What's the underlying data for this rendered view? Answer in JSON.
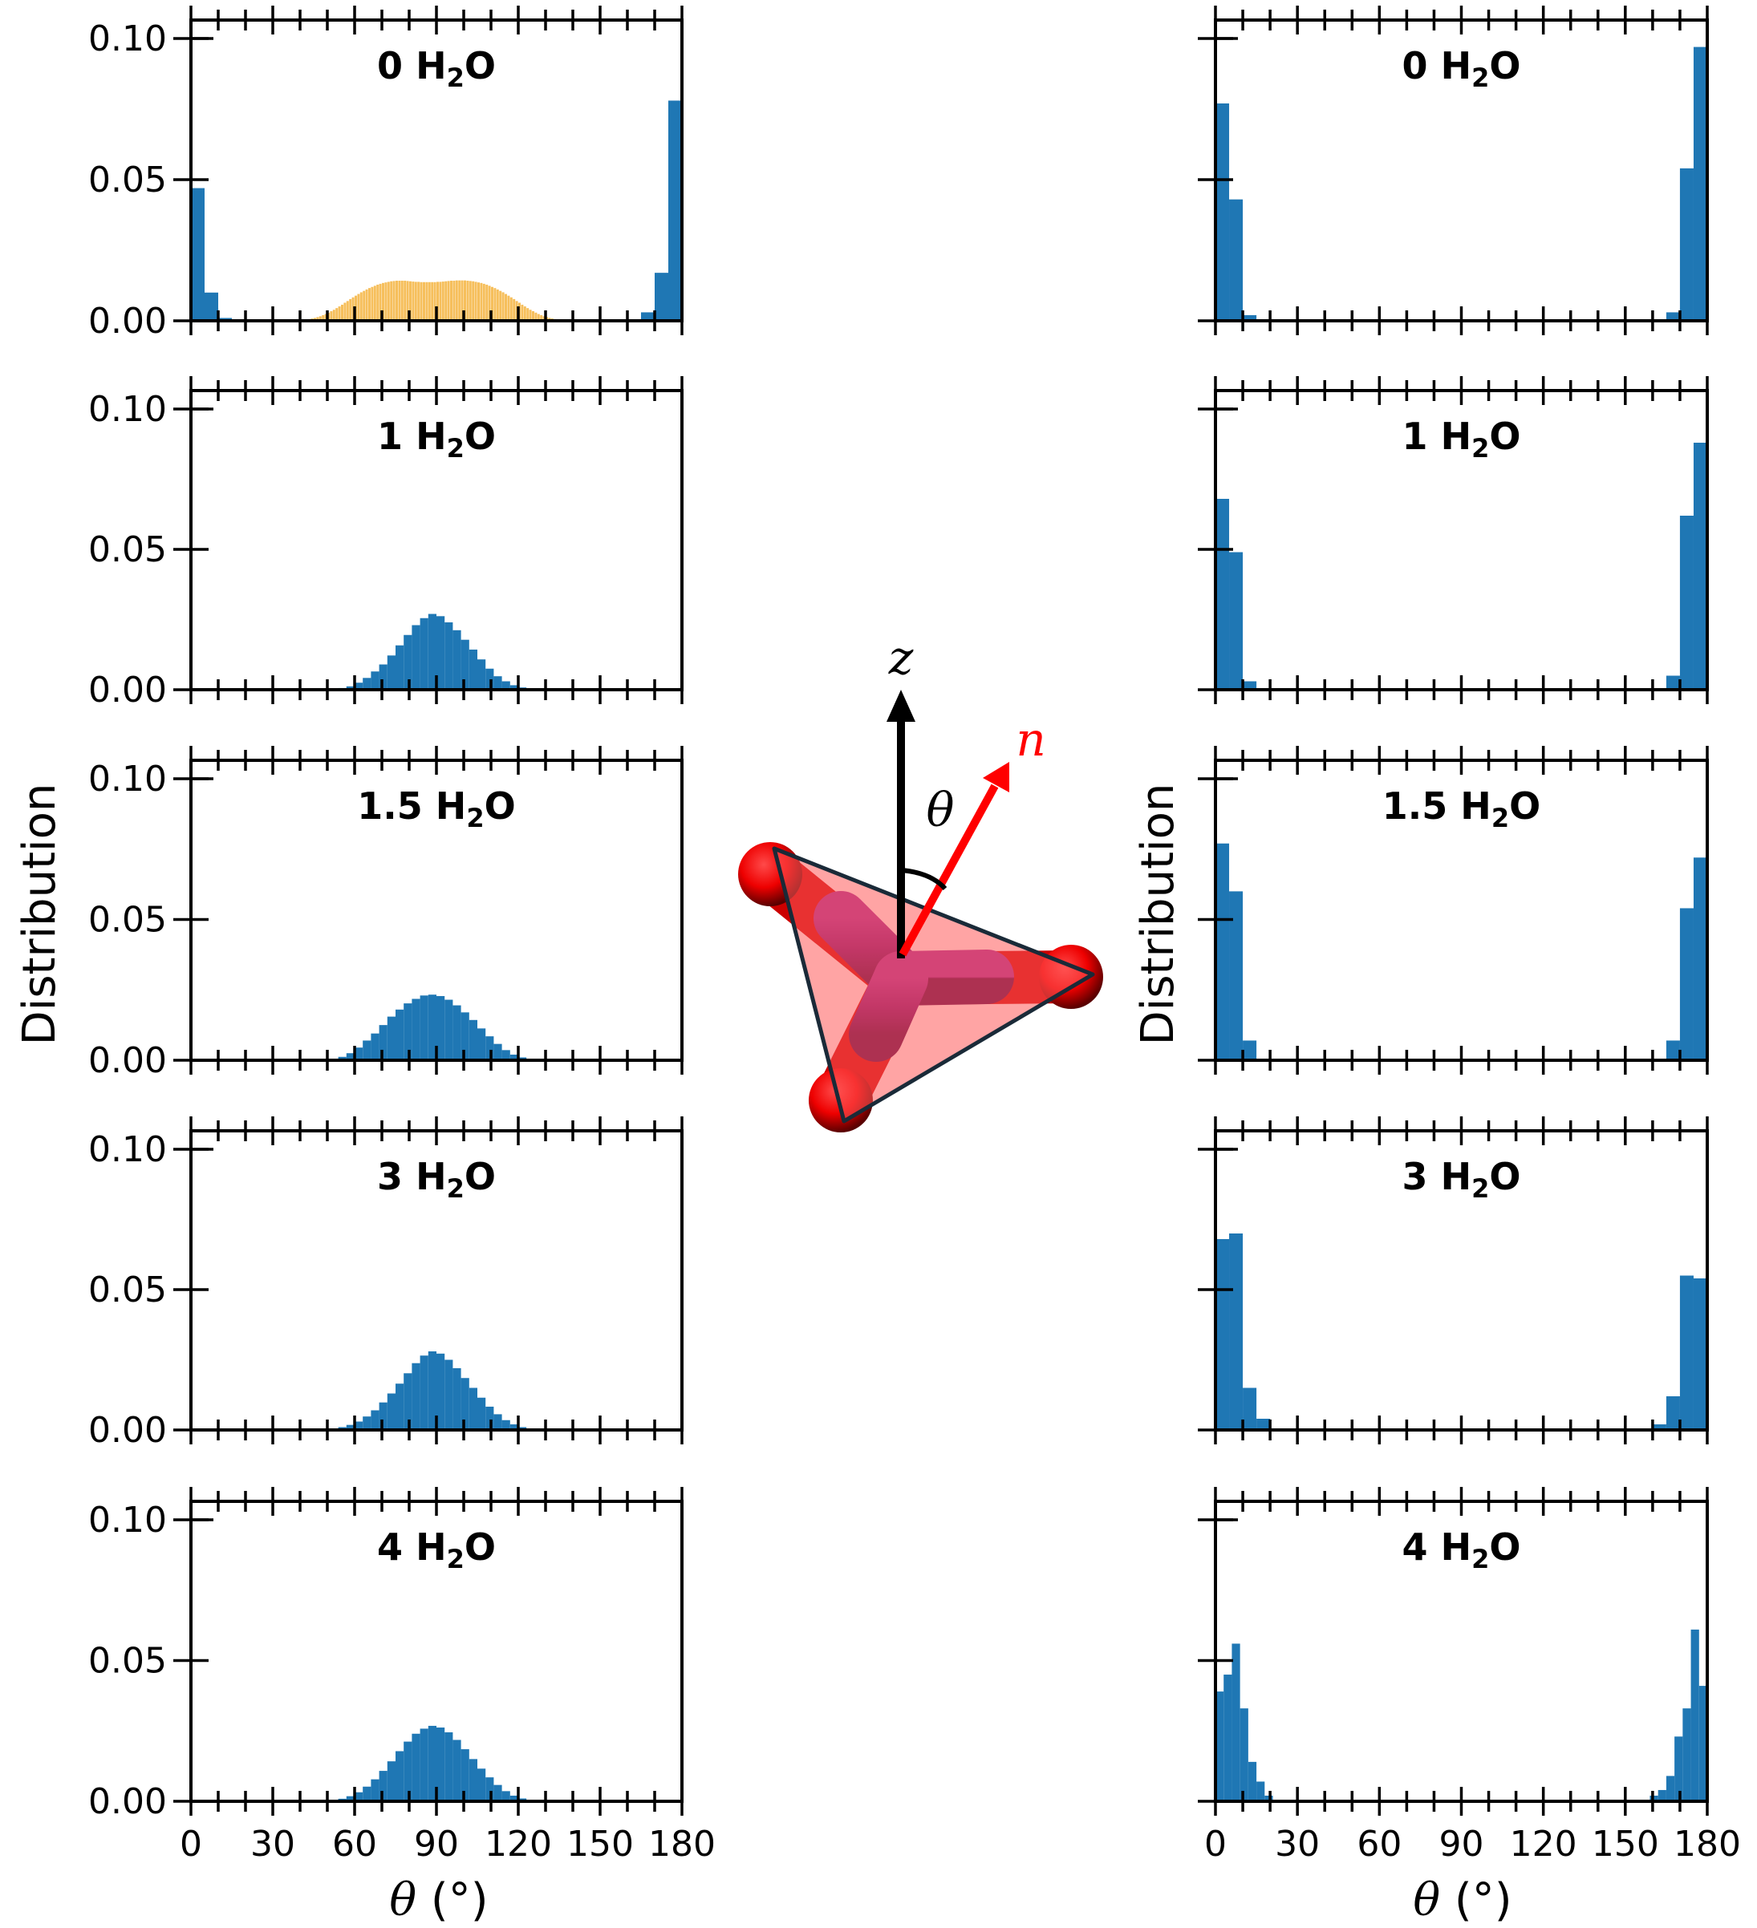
{
  "colors": {
    "bar": "#1f77b4",
    "bar_ref": "#f5b84a",
    "n_vector": "#ff0000",
    "z_vector": "#000000"
  },
  "figure": {
    "ylabel": "Distribution",
    "xlabel_symbol": "θ",
    "xlabel_unit": " (°)",
    "molecule": {
      "z_label": "z",
      "n_label": "n",
      "theta_label": "θ"
    }
  },
  "chart_data": [
    {
      "type": "bar",
      "column": "left",
      "title_pre": "0 H",
      "title_sub": "2",
      "title_post": "O",
      "xlim": [
        0,
        180
      ],
      "ylim": [
        0,
        0.1
      ],
      "xticks": [
        "0",
        "30",
        "60",
        "90",
        "120",
        "150",
        "180"
      ],
      "yticks": [
        "0.00",
        "0.05",
        "0.10"
      ],
      "bin_width": 5,
      "series": [
        {
          "values": [
            0.047,
            0.01,
            0.001,
            0,
            0,
            0,
            0,
            0,
            0,
            0,
            0,
            0,
            0,
            0,
            0,
            0,
            0,
            0,
            0,
            0,
            0,
            0,
            0,
            0,
            0,
            0,
            0,
            0,
            0,
            0,
            0,
            0,
            0,
            0.003,
            0.017,
            0.078
          ]
        },
        {
          "bin_width": 1,
          "values": [
            0,
            0,
            0,
            0,
            0,
            0,
            0,
            0,
            0,
            0,
            0,
            0,
            0,
            0,
            0,
            0,
            0,
            0,
            0,
            0,
            0,
            0,
            0,
            0,
            0,
            0,
            0,
            0,
            0,
            0,
            0,
            0,
            0,
            0,
            0,
            0,
            0,
            0,
            0,
            0,
            0,
            0,
            0.0004,
            0.0006,
            0.0008,
            0.001,
            0.0013,
            0.0016,
            0.002,
            0.0024,
            0.0029,
            0.0034,
            0.0039,
            0.0045,
            0.0051,
            0.0057,
            0.0064,
            0.007,
            0.0077,
            0.0083,
            0.0089,
            0.0095,
            0.0101,
            0.0106,
            0.0111,
            0.0116,
            0.012,
            0.0124,
            0.0128,
            0.0131,
            0.0134,
            0.0136,
            0.0138,
            0.014,
            0.0141,
            0.0142,
            0.0142,
            0.0142,
            0.0142,
            0.0141,
            0.014,
            0.0139,
            0.0138,
            0.0138,
            0.0137,
            0.0137,
            0.0137,
            0.0137,
            0.0137,
            0.0137,
            0.0138,
            0.0138,
            0.0139,
            0.014,
            0.0141,
            0.0142,
            0.0142,
            0.0143,
            0.0143,
            0.0143,
            0.0143,
            0.0142,
            0.0141,
            0.014,
            0.0138,
            0.0136,
            0.0134,
            0.0131,
            0.0128,
            0.0124,
            0.012,
            0.0116,
            0.0111,
            0.0106,
            0.0101,
            0.0095,
            0.0089,
            0.0083,
            0.0077,
            0.007,
            0.0064,
            0.0057,
            0.0051,
            0.0045,
            0.0039,
            0.0034,
            0.0029,
            0.0024,
            0.002,
            0.0016,
            0.0013,
            0.001,
            0.0008,
            0.0006,
            0.0004,
            0.0003,
            0.0002,
            0.0001,
            0,
            0,
            0,
            0,
            0,
            0,
            0,
            0,
            0,
            0,
            0,
            0,
            0,
            0,
            0,
            0,
            0,
            0,
            0,
            0,
            0,
            0,
            0,
            0,
            0,
            0,
            0,
            0,
            0,
            0,
            0,
            0,
            0,
            0,
            0,
            0,
            0,
            0,
            0,
            0,
            0,
            0,
            0,
            0,
            0,
            0,
            0,
            0,
            0,
            0,
            0,
            0
          ]
        }
      ]
    },
    {
      "type": "bar",
      "column": "left",
      "title_pre": "1 H",
      "title_sub": "2",
      "title_post": "O",
      "xlim": [
        0,
        180
      ],
      "ylim": [
        0,
        0.1
      ],
      "xticks": [
        "0",
        "30",
        "60",
        "90",
        "120",
        "150",
        "180"
      ],
      "yticks": [
        "0.00",
        "0.05",
        "0.10"
      ],
      "bin_width": 3,
      "series": [
        {
          "values": [
            0,
            0,
            0,
            0,
            0,
            0,
            0,
            0,
            0,
            0,
            0,
            0,
            0,
            0,
            0,
            0,
            0,
            0.0003,
            0.0006,
            0.0012,
            0.0025,
            0.0042,
            0.0065,
            0.009,
            0.0122,
            0.0158,
            0.0195,
            0.023,
            0.0255,
            0.027,
            0.0262,
            0.024,
            0.0212,
            0.0178,
            0.0143,
            0.0108,
            0.0075,
            0.0048,
            0.003,
            0.0016,
            0.0008,
            0.0003,
            0,
            0,
            0,
            0,
            0,
            0,
            0,
            0,
            0,
            0,
            0,
            0,
            0,
            0,
            0,
            0,
            0,
            0
          ]
        }
      ]
    },
    {
      "type": "bar",
      "column": "left",
      "title_pre": "1.5 H",
      "title_sub": "2",
      "title_post": "O",
      "xlim": [
        0,
        180
      ],
      "ylim": [
        0,
        0.1
      ],
      "xticks": [
        "0",
        "30",
        "60",
        "90",
        "120",
        "150",
        "180"
      ],
      "yticks": [
        "0.00",
        "0.05",
        "0.10"
      ],
      "bin_width": 3,
      "series": [
        {
          "values": [
            0,
            0,
            0,
            0,
            0,
            0,
            0,
            0,
            0,
            0,
            0,
            0,
            0,
            0,
            0,
            0,
            0,
            0.0005,
            0.0012,
            0.0025,
            0.0045,
            0.007,
            0.0095,
            0.0125,
            0.0155,
            0.018,
            0.0202,
            0.0218,
            0.023,
            0.0233,
            0.0228,
            0.0215,
            0.0195,
            0.017,
            0.0143,
            0.0113,
            0.0085,
            0.0058,
            0.0036,
            0.002,
            0.001,
            0.0004,
            0,
            0,
            0,
            0,
            0,
            0,
            0,
            0,
            0,
            0,
            0,
            0,
            0,
            0,
            0,
            0,
            0,
            0
          ]
        }
      ]
    },
    {
      "type": "bar",
      "column": "left",
      "title_pre": "3 H",
      "title_sub": "2",
      "title_post": "O",
      "xlim": [
        0,
        180
      ],
      "ylim": [
        0,
        0.1
      ],
      "xticks": [
        "0",
        "30",
        "60",
        "90",
        "120",
        "150",
        "180"
      ],
      "yticks": [
        "0.00",
        "0.05",
        "0.10"
      ],
      "bin_width": 3,
      "series": [
        {
          "values": [
            0,
            0,
            0,
            0,
            0,
            0,
            0,
            0,
            0,
            0,
            0,
            0,
            0,
            0,
            0,
            0,
            0.0002,
            0.0005,
            0.001,
            0.0018,
            0.003,
            0.0048,
            0.007,
            0.0098,
            0.013,
            0.0165,
            0.0202,
            0.0238,
            0.0265,
            0.028,
            0.0272,
            0.025,
            0.022,
            0.0185,
            0.015,
            0.0115,
            0.0083,
            0.0056,
            0.0035,
            0.002,
            0.001,
            0.0004,
            0,
            0,
            0,
            0,
            0,
            0,
            0,
            0,
            0,
            0,
            0,
            0,
            0,
            0,
            0,
            0,
            0,
            0
          ]
        }
      ]
    },
    {
      "type": "bar",
      "column": "left",
      "title_pre": "4 H",
      "title_sub": "2",
      "title_post": "O",
      "xlim": [
        0,
        180
      ],
      "ylim": [
        0,
        0.1
      ],
      "xticks": [
        "0",
        "30",
        "60",
        "90",
        "120",
        "150",
        "180"
      ],
      "yticks": [
        "0.00",
        "0.05",
        "0.10"
      ],
      "bin_width": 3,
      "series": [
        {
          "values": [
            0,
            0,
            0,
            0,
            0,
            0,
            0,
            0,
            0,
            0,
            0,
            0,
            0,
            0,
            0,
            0,
            0,
            0.0004,
            0.0009,
            0.0018,
            0.0032,
            0.0052,
            0.0078,
            0.0108,
            0.0142,
            0.0178,
            0.0212,
            0.024,
            0.0258,
            0.0268,
            0.0262,
            0.0245,
            0.0218,
            0.0185,
            0.015,
            0.0116,
            0.0085,
            0.0058,
            0.0036,
            0.002,
            0.001,
            0.0004,
            0,
            0,
            0,
            0,
            0,
            0,
            0,
            0,
            0,
            0,
            0,
            0,
            0,
            0,
            0,
            0,
            0,
            0
          ]
        }
      ]
    },
    {
      "type": "bar",
      "column": "right",
      "title_pre": "0 H",
      "title_sub": "2",
      "title_post": "O",
      "xlim": [
        0,
        180
      ],
      "ylim": [
        0,
        0.1
      ],
      "xticks": [
        "0",
        "30",
        "60",
        "90",
        "120",
        "150",
        "180"
      ],
      "yticks": [
        "",
        "",
        ""
      ],
      "bin_width": 5,
      "series": [
        {
          "values": [
            0.077,
            0.043,
            0.002,
            0,
            0,
            0,
            0,
            0,
            0,
            0,
            0,
            0,
            0,
            0,
            0,
            0,
            0,
            0,
            0,
            0,
            0,
            0,
            0,
            0,
            0,
            0,
            0,
            0,
            0,
            0,
            0,
            0,
            0,
            0.003,
            0.054,
            0.097
          ]
        }
      ]
    },
    {
      "type": "bar",
      "column": "right",
      "title_pre": "1 H",
      "title_sub": "2",
      "title_post": "O",
      "xlim": [
        0,
        180
      ],
      "ylim": [
        0,
        0.1
      ],
      "xticks": [
        "0",
        "30",
        "60",
        "90",
        "120",
        "150",
        "180"
      ],
      "yticks": [
        "",
        "",
        ""
      ],
      "bin_width": 5,
      "series": [
        {
          "values": [
            0.068,
            0.049,
            0.003,
            0,
            0,
            0,
            0,
            0,
            0,
            0,
            0,
            0,
            0,
            0,
            0,
            0,
            0,
            0,
            0,
            0,
            0,
            0,
            0,
            0,
            0,
            0,
            0,
            0,
            0,
            0,
            0,
            0,
            0,
            0.005,
            0.062,
            0.088
          ]
        }
      ]
    },
    {
      "type": "bar",
      "column": "right",
      "title_pre": "1.5 H",
      "title_sub": "2",
      "title_post": "O",
      "xlim": [
        0,
        180
      ],
      "ylim": [
        0,
        0.1
      ],
      "xticks": [
        "0",
        "30",
        "60",
        "90",
        "120",
        "150",
        "180"
      ],
      "yticks": [
        "",
        "",
        ""
      ],
      "bin_width": 5,
      "series": [
        {
          "values": [
            0.077,
            0.06,
            0.007,
            0,
            0,
            0,
            0,
            0,
            0,
            0,
            0,
            0,
            0,
            0,
            0,
            0,
            0,
            0,
            0,
            0,
            0,
            0,
            0,
            0,
            0,
            0,
            0,
            0,
            0,
            0,
            0,
            0,
            0,
            0.007,
            0.054,
            0.072
          ]
        }
      ]
    },
    {
      "type": "bar",
      "column": "right",
      "title_pre": "3 H",
      "title_sub": "2",
      "title_post": "O",
      "xlim": [
        0,
        180
      ],
      "ylim": [
        0,
        0.1
      ],
      "xticks": [
        "0",
        "30",
        "60",
        "90",
        "120",
        "150",
        "180"
      ],
      "yticks": [
        "",
        "",
        ""
      ],
      "bin_width": 5,
      "series": [
        {
          "values": [
            0.068,
            0.07,
            0.015,
            0.004,
            0,
            0,
            0,
            0,
            0,
            0,
            0,
            0,
            0,
            0,
            0,
            0,
            0,
            0,
            0,
            0,
            0,
            0,
            0,
            0,
            0,
            0,
            0,
            0,
            0,
            0,
            0,
            0,
            0.002,
            0.012,
            0.055,
            0.054
          ]
        }
      ]
    },
    {
      "type": "bar",
      "column": "right",
      "title_pre": "4 H",
      "title_sub": "2",
      "title_post": "O",
      "xlim": [
        0,
        180
      ],
      "ylim": [
        0,
        0.1
      ],
      "xticks": [
        "0",
        "30",
        "60",
        "90",
        "120",
        "150",
        "180"
      ],
      "yticks": [
        "",
        "",
        ""
      ],
      "bin_width": 3,
      "series": [
        {
          "values": [
            0.039,
            0.045,
            0.056,
            0.033,
            0.014,
            0.007,
            0.002,
            0,
            0,
            0,
            0,
            0,
            0,
            0,
            0,
            0,
            0,
            0,
            0,
            0,
            0,
            0,
            0,
            0,
            0,
            0,
            0,
            0,
            0,
            0,
            0,
            0,
            0,
            0,
            0,
            0,
            0,
            0,
            0,
            0,
            0,
            0,
            0,
            0,
            0,
            0,
            0,
            0,
            0,
            0,
            0,
            0,
            0,
            0.002,
            0.004,
            0.009,
            0.023,
            0.033,
            0.061,
            0.041
          ]
        }
      ]
    }
  ]
}
